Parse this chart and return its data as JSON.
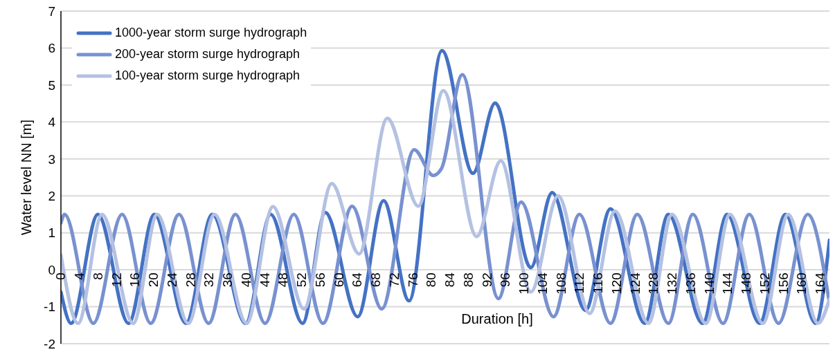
{
  "chart_data": {
    "type": "line",
    "xlabel": "Duration [h]",
    "ylabel": "Water level NN [m]",
    "xlim": [
      0,
      166
    ],
    "xticks": [
      0,
      4,
      8,
      12,
      16,
      20,
      24,
      28,
      32,
      36,
      40,
      44,
      48,
      52,
      56,
      60,
      64,
      68,
      72,
      76,
      80,
      84,
      88,
      92,
      96,
      100,
      104,
      108,
      112,
      116,
      120,
      124,
      128,
      132,
      136,
      140,
      144,
      148,
      152,
      156,
      160,
      164
    ],
    "ylim": [
      -2,
      7
    ],
    "yticks": [
      -2,
      -1,
      0,
      1,
      2,
      3,
      4,
      5,
      6,
      7
    ],
    "grid": "y",
    "legend": "top left",
    "marker": "none",
    "line_style": "solid",
    "series": [
      {
        "name": "1000-year storm surge hydrograph",
        "color": "#4472c4",
        "x": [
          0,
          2.2,
          8.0,
          14.6,
          20.2,
          27.0,
          32.7,
          39.9,
          45.3,
          52.2,
          57.1,
          64.1,
          69.7,
          75.2,
          82.3,
          89.0,
          93.8,
          101.5,
          106.1,
          113.3,
          118.7,
          126.1,
          131.2,
          138.6,
          143.9,
          150.9,
          156.5,
          163.0,
          166
        ],
        "values": [
          -0.6,
          -1.45,
          1.5,
          -1.45,
          1.5,
          -1.45,
          1.5,
          -1.45,
          1.5,
          -1.45,
          1.55,
          -1.27,
          1.87,
          -0.84,
          5.93,
          2.61,
          4.51,
          0.06,
          2.09,
          -1.1,
          1.65,
          -1.45,
          1.5,
          -1.45,
          1.5,
          -1.45,
          1.5,
          -1.45,
          0.8
        ]
      },
      {
        "name": "200-year storm surge hydrograph",
        "color": "#7891d0",
        "x": [
          0,
          0.8,
          7.0,
          13.2,
          19.4,
          25.5,
          31.9,
          37.7,
          44.1,
          50.3,
          56.6,
          62.9,
          69.3,
          76.3,
          80.4,
          82.2,
          86.7,
          94.5,
          99.4,
          106.4,
          112.0,
          118.7,
          124.5,
          131.2,
          136.5,
          143.0,
          148.7,
          155.0,
          161.3,
          166
        ],
        "values": [
          1.27,
          1.5,
          -1.45,
          1.5,
          -1.45,
          1.5,
          -1.45,
          1.5,
          -1.45,
          1.5,
          -1.45,
          1.72,
          -1.06,
          3.25,
          2.55,
          2.74,
          5.28,
          -0.78,
          1.83,
          -1.27,
          1.5,
          -1.45,
          1.5,
          -1.45,
          1.5,
          -1.45,
          1.5,
          -1.45,
          1.5,
          -0.9
        ]
      },
      {
        "name": "100-year storm surge hydrograph",
        "color": "#b4c1e2",
        "x": [
          0,
          3.7,
          8.9,
          15.6,
          20.8,
          27.5,
          33.2,
          40.1,
          45.8,
          52.5,
          58.5,
          64.4,
          70.5,
          77.2,
          82.6,
          89.8,
          95.0,
          101.5,
          107.4,
          114.2,
          119.7,
          126.9,
          132.0,
          139.3,
          144.5,
          151.6,
          157.1,
          163.5,
          166
        ],
        "values": [
          0.4,
          -1.45,
          1.5,
          -1.45,
          1.5,
          -1.45,
          1.5,
          -1.45,
          1.71,
          -1.06,
          2.33,
          0.43,
          4.1,
          1.72,
          4.85,
          0.9,
          2.95,
          -0.6,
          2.0,
          -1.18,
          1.59,
          -1.45,
          1.5,
          -1.45,
          1.5,
          -1.45,
          1.5,
          -1.45,
          -0.8
        ]
      }
    ]
  }
}
